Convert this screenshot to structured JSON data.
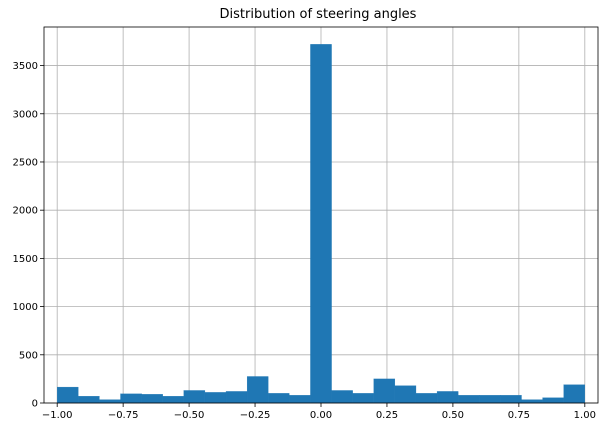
{
  "chart_data": {
    "type": "bar",
    "title": "Distribution of steering angles",
    "xlabel": "",
    "ylabel": "",
    "xlim": [
      -1.05,
      1.05
    ],
    "ylim": [
      0,
      3900
    ],
    "grid": true,
    "bar_color": "#1f77b4",
    "bin_edges": [
      -1.0,
      -0.92,
      -0.84,
      -0.76,
      -0.68,
      -0.6,
      -0.52,
      -0.44,
      -0.36,
      -0.28,
      -0.2,
      -0.12,
      -0.04,
      0.04,
      0.12,
      0.2,
      0.28,
      0.36,
      0.44,
      0.52,
      0.6,
      0.68,
      0.76,
      0.84,
      0.92,
      1.0
    ],
    "values": [
      165,
      70,
      35,
      95,
      90,
      70,
      130,
      110,
      120,
      275,
      100,
      80,
      3720,
      130,
      100,
      250,
      180,
      100,
      120,
      80,
      80,
      80,
      35,
      55,
      190
    ],
    "x_ticks": [
      -1.0,
      -0.75,
      -0.5,
      -0.25,
      0.0,
      0.25,
      0.5,
      0.75,
      1.0
    ],
    "x_tick_labels": [
      "−1.00",
      "−0.75",
      "−0.50",
      "−0.25",
      "0.00",
      "0.25",
      "0.50",
      "0.75",
      "1.00"
    ],
    "y_ticks": [
      0,
      500,
      1000,
      1500,
      2000,
      2500,
      3000,
      3500
    ],
    "y_tick_labels": [
      "0",
      "500",
      "1000",
      "1500",
      "2000",
      "2500",
      "3000",
      "3500"
    ]
  }
}
